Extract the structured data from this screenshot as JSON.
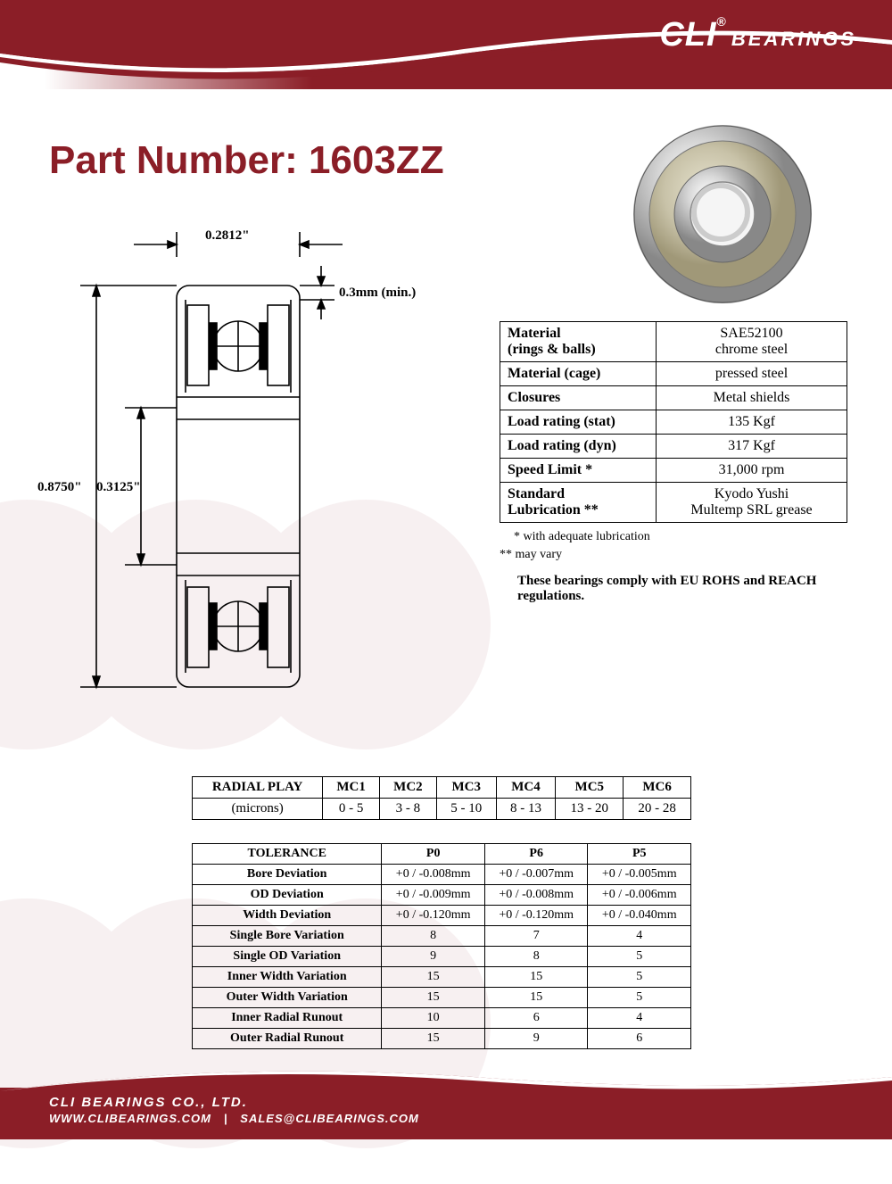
{
  "colors": {
    "brand_red": "#8b1e27",
    "white": "#ffffff",
    "black": "#000000",
    "table_border": "#000000"
  },
  "header": {
    "brand": "CLI",
    "registered": "®",
    "suffix": "BEARINGS"
  },
  "title": {
    "label": "Part Number:",
    "value": "1603ZZ"
  },
  "diagram": {
    "width_dim": "0.2812\"",
    "chamfer": "0.3mm (min.)",
    "outer_dia": "0.8750\"",
    "inner_dia": "0.3125\"",
    "line_color": "#000000",
    "line_width": 1.6
  },
  "spec_table": {
    "rows": [
      {
        "label": "Material\n(rings & balls)",
        "value": "SAE52100\nchrome steel"
      },
      {
        "label": "Material (cage)",
        "value": "pressed steel"
      },
      {
        "label": "Closures",
        "value": "Metal shields"
      },
      {
        "label": "Load rating (stat)",
        "value": "135 Kgf"
      },
      {
        "label": "Load rating (dyn)",
        "value": "317 Kgf"
      },
      {
        "label": "Speed Limit *",
        "value": "31,000 rpm"
      },
      {
        "label": "Standard\nLubrication  **",
        "value": "Kyodo Yushi\nMultemp SRL grease"
      }
    ],
    "note1": "* with adequate lubrication",
    "note2": "** may vary",
    "compliance": "These bearings comply with EU ROHS and REACH  regulations."
  },
  "radial_play": {
    "header": "RADIAL PLAY",
    "unit": "(microns)",
    "columns": [
      "MC1",
      "MC2",
      "MC3",
      "MC4",
      "MC5",
      "MC6"
    ],
    "values": [
      "0 - 5",
      "3 - 8",
      "5 - 10",
      "8 - 13",
      "13 - 20",
      "20 - 28"
    ]
  },
  "tolerance": {
    "header": "TOLERANCE",
    "columns": [
      "P0",
      "P6",
      "P5"
    ],
    "rows": [
      {
        "label": "Bore Deviation",
        "vals": [
          "+0 / -0.008mm",
          "+0 / -0.007mm",
          "+0 / -0.005mm"
        ]
      },
      {
        "label": "OD Deviation",
        "vals": [
          "+0 / -0.009mm",
          "+0 / -0.008mm",
          "+0 / -0.006mm"
        ]
      },
      {
        "label": "Width Deviation",
        "vals": [
          "+0 / -0.120mm",
          "+0 / -0.120mm",
          "+0 / -0.040mm"
        ]
      },
      {
        "label": "Single Bore Variation",
        "vals": [
          "8",
          "7",
          "4"
        ]
      },
      {
        "label": "Single OD Variation",
        "vals": [
          "9",
          "8",
          "5"
        ]
      },
      {
        "label": "Inner Width Variation",
        "vals": [
          "15",
          "15",
          "5"
        ]
      },
      {
        "label": "Outer Width Variation",
        "vals": [
          "15",
          "15",
          "5"
        ]
      },
      {
        "label": "Inner Radial Runout",
        "vals": [
          "10",
          "6",
          "4"
        ]
      },
      {
        "label": "Outer Radial Runout",
        "vals": [
          "15",
          "9",
          "6"
        ]
      }
    ]
  },
  "footer": {
    "company": "CLI BEARINGS CO., LTD.",
    "website": "WWW.CLIBEARINGS.COM",
    "separator": "|",
    "email": "SALES@CLIBEARINGS.COM"
  }
}
